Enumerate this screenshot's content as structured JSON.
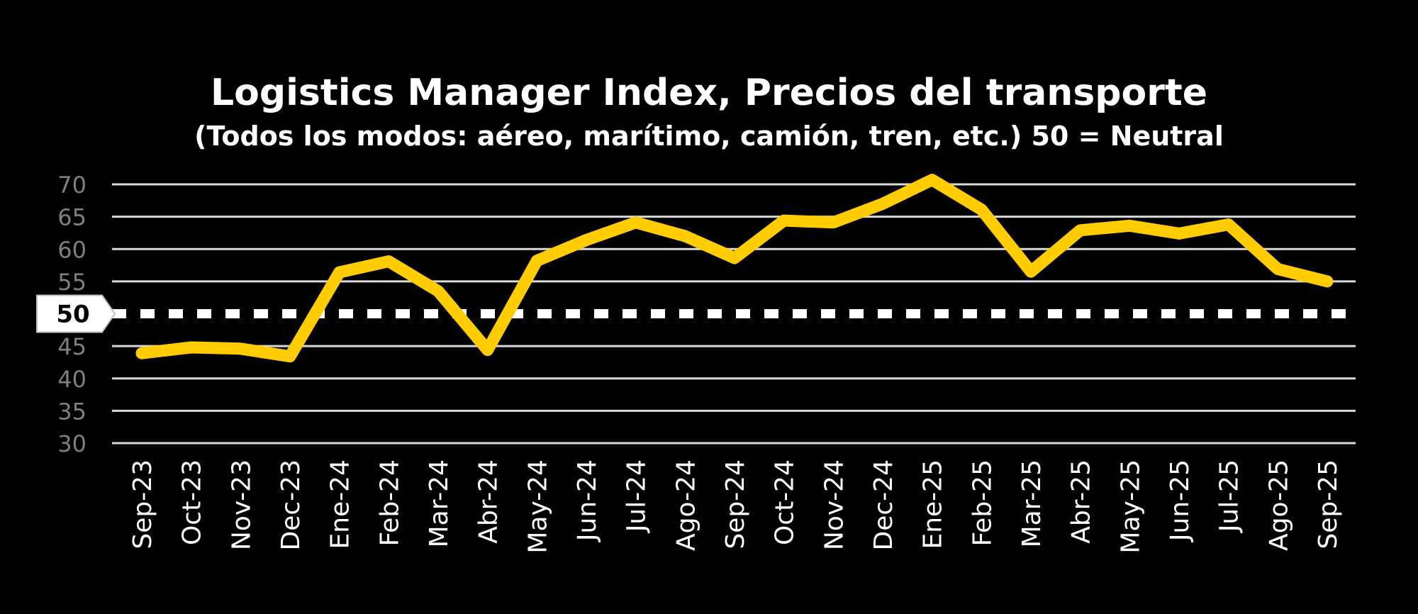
{
  "chart_data": {
    "type": "line",
    "title": "Logistics Manager Index, Precios del transporte",
    "subtitle": "(Todos los modos: aéreo, marítimo, camión, tren, etc.) 50 = Neutral",
    "categories": [
      "Sep-23",
      "Oct-23",
      "Nov-23",
      "Dec-23",
      "Ene-24",
      "Feb-24",
      "Mar-24",
      "Abr-24",
      "May-24",
      "Jun-24",
      "Jul-24",
      "Ago-24",
      "Sep-24",
      "Oct-24",
      "Nov-24",
      "Dec-24",
      "Ene-25",
      "Feb-25",
      "Mar-25",
      "Abr-25",
      "May-25",
      "Jun-25",
      "Jul-25",
      "Ago-25",
      "Sep-25"
    ],
    "values": [
      43.9,
      44.8,
      44.6,
      43.4,
      56.4,
      58.1,
      53.5,
      44.4,
      58.2,
      61.4,
      64.1,
      62.0,
      58.6,
      64.4,
      64.1,
      67.0,
      70.7,
      66.1,
      56.5,
      62.9,
      63.6,
      62.4,
      63.8,
      56.9,
      55.0
    ],
    "ylim": [
      30,
      70
    ],
    "yticks": [
      30,
      35,
      40,
      45,
      50,
      55,
      60,
      65,
      70
    ],
    "grid": true,
    "reference_line": {
      "value": 50,
      "label": "50"
    },
    "colors": {
      "line": "#FFCC00",
      "grid": "#D9D9D9",
      "background": "#000000",
      "reference": "#FFFFFF"
    }
  }
}
